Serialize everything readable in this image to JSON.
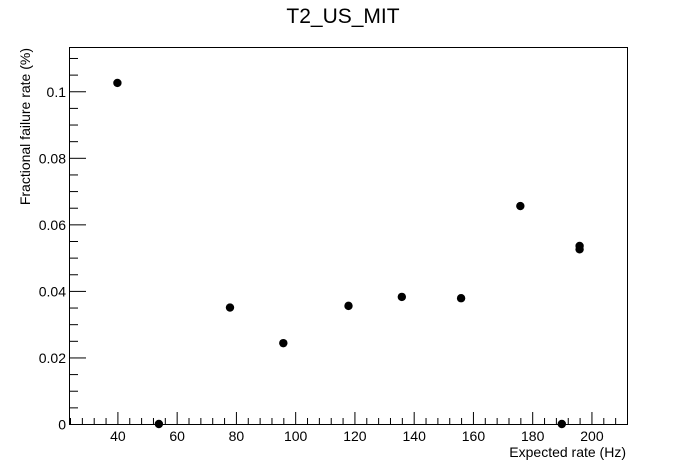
{
  "chart_data": {
    "type": "scatter",
    "title": "T2_US_MIT",
    "xlabel": "Expected rate (Hz)",
    "ylabel": "Fractional failure rate (%)",
    "xlim": [
      24,
      212
    ],
    "ylim": [
      0,
      0.113
    ],
    "x_ticks": [
      40,
      60,
      80,
      100,
      120,
      140,
      160,
      180,
      200
    ],
    "x_tick_labels": [
      "40",
      "60",
      "80",
      "100",
      "120",
      "140",
      "160",
      "180",
      "200"
    ],
    "x_minor_step": 4,
    "y_ticks": [
      0,
      0.02,
      0.04,
      0.06,
      0.08,
      0.1
    ],
    "y_tick_labels": [
      "0",
      "0.02",
      "0.04",
      "0.06",
      "0.08",
      "0.1"
    ],
    "y_minor_step": 0.005,
    "grid": false,
    "legend": "none",
    "marker_color": "#000000",
    "points": [
      {
        "x": 40,
        "y": 0.1025
      },
      {
        "x": 54,
        "y": 0.0
      },
      {
        "x": 78,
        "y": 0.035
      },
      {
        "x": 96,
        "y": 0.0243
      },
      {
        "x": 118,
        "y": 0.0355
      },
      {
        "x": 136,
        "y": 0.0382
      },
      {
        "x": 156,
        "y": 0.0378
      },
      {
        "x": 176,
        "y": 0.0655
      },
      {
        "x": 190,
        "y": 0.0
      },
      {
        "x": 196,
        "y": 0.0535
      },
      {
        "x": 196,
        "y": 0.0525
      }
    ]
  }
}
